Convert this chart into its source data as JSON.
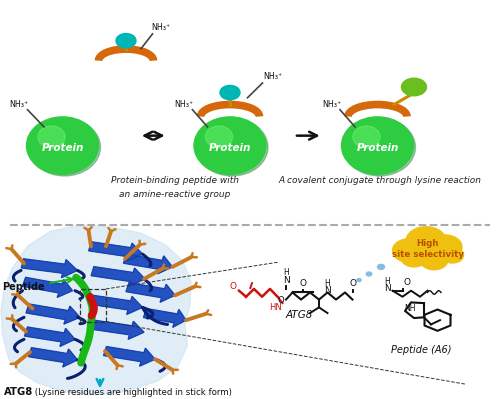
{
  "background_color": "#ffffff",
  "top": {
    "protein_color": "#2ecc40",
    "protein_dark": "#27ae60",
    "cap_color": "#d4680a",
    "teal_color": "#00b5b5",
    "green_blob_color": "#6abf1e",
    "nh3_color": "#222222",
    "arrow_color": "#111111",
    "text_italic1": "Protein-binding peptide with",
    "text_italic2": "an amine-reactive group",
    "text_italic3": "A covalent conjugate through lysine reaction",
    "protein_label": "Protein"
  },
  "sep": {
    "color": "#aaaaaa",
    "lw": 1.5
  },
  "bot": {
    "surface_color": "#c8dff0",
    "ribbon_blue": "#1a4abf",
    "ribbon_dark": "#0d2a8a",
    "loop_color": "#0a2070",
    "lysine_color": "#c87820",
    "peptide_green": "#18b818",
    "peptide_red": "#cc1111",
    "cloud_color": "#f0c010",
    "cloud_text": "#b85000",
    "dot_color": "#88bbdd",
    "arrow_blue": "#00aacc",
    "atg8_red": "#cc1111",
    "chem_black": "#111111"
  }
}
